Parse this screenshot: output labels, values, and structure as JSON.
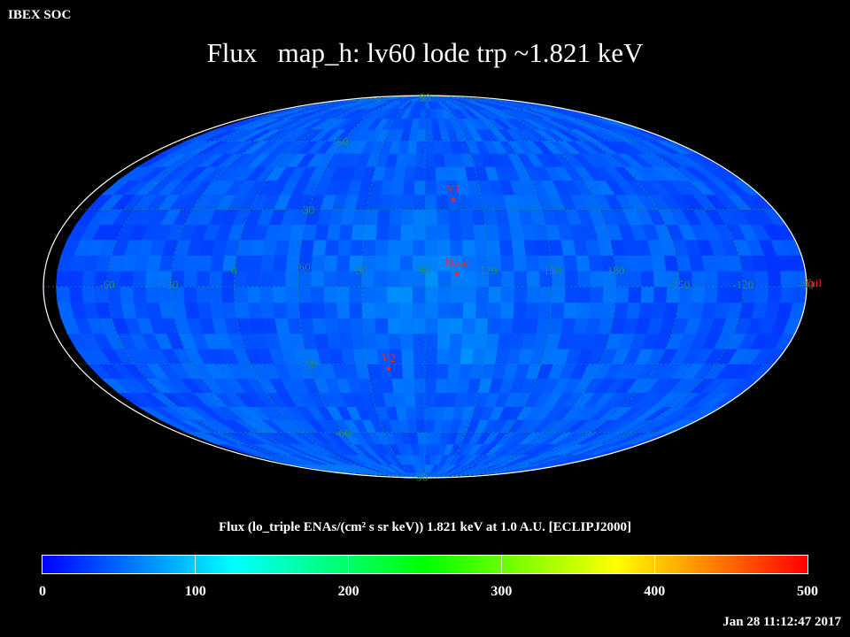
{
  "header": {
    "org": "IBEX SOC",
    "title": "Flux   map_h: lv60 lode trp ~1.821 keV"
  },
  "chart_data": {
    "type": "heatmap",
    "projection": "mollweide",
    "frame": "ECLIPJ2000",
    "grid": true,
    "grid_color": "#2e8b57",
    "marker_color": "#ff2020",
    "longitude_ticks": [
      "60",
      "30",
      "0",
      "-30",
      "-60",
      "-90",
      "-120",
      "-150",
      "180",
      "150",
      "120",
      "90"
    ],
    "latitude_ticks": [
      "90",
      "60",
      "30",
      "-30",
      "-60",
      "-90"
    ],
    "markers": [
      {
        "label": "V1",
        "lon": 255,
        "lat": 34
      },
      {
        "label": "Nose",
        "lon": 255,
        "lat": 5
      },
      {
        "label": "V2",
        "lon": 289,
        "lat": -32
      },
      {
        "label": "Tail",
        "lon": 75,
        "lat": -5
      }
    ],
    "colorbar": {
      "range": [
        0,
        500
      ],
      "ticks": [
        "0",
        "100",
        "200",
        "300",
        "400",
        "500"
      ],
      "colors": [
        "#0000ff",
        "#00ffff",
        "#00ff00",
        "#ffff00",
        "#ff0000"
      ]
    },
    "typical_flux": 45,
    "caption": "Flux (lo_triple ENAs/(cm² s sr keV))  1.821 keV at 1.0 A.U. [ECLIPJ2000]"
  },
  "footer": {
    "timestamp": "Jan 28 11:12:47 2017"
  }
}
